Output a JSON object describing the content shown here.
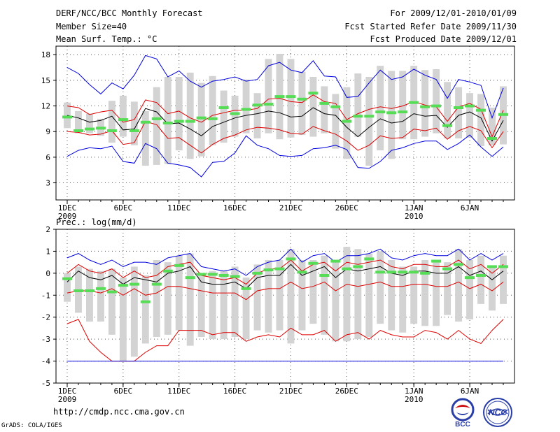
{
  "header": {
    "title": "DERF/NCC/BCC Monthly Forecast",
    "member_size": "Member Size=40",
    "variable": "Mean Surf. Temp.: °C",
    "period": "For 2009/12/01-2010/01/09",
    "fcst_started": "Fcst Started Refer Date 2009/11/30",
    "fcst_produced": "Fcst Produced Date 2009/12/01"
  },
  "footer": {
    "url": "http://cmdp.ncc.cma.gov.cn",
    "credit": "GrADS: COLA/IGES",
    "logo_bcc": "BCC",
    "logo_ncc": "NCC"
  },
  "colors": {
    "max_line": "#0000dd",
    "pct_line": "#dd0000",
    "mean_line": "#000000",
    "box": "#d3d3d3",
    "marker": "#55dd55",
    "grid": "#555555"
  },
  "chart_data": [
    {
      "type": "line",
      "title": "Mean Surf. Temp.: °C",
      "ylim": [
        1,
        19
      ],
      "yticks": [
        3,
        6,
        9,
        12,
        15,
        18
      ],
      "xtick_labels": [
        {
          "day": 1,
          "label": "1DEC",
          "sub": "2009"
        },
        {
          "day": 6,
          "label": "6DEC",
          "sub": ""
        },
        {
          "day": 11,
          "label": "11DEC",
          "sub": ""
        },
        {
          "day": 16,
          "label": "16DEC",
          "sub": ""
        },
        {
          "day": 21,
          "label": "21DEC",
          "sub": ""
        },
        {
          "day": 26,
          "label": "26DEC",
          "sub": ""
        },
        {
          "day": 32,
          "label": "1JAN",
          "sub": "2010"
        },
        {
          "day": 37,
          "label": "6JAN",
          "sub": ""
        }
      ],
      "days": [
        1,
        2,
        3,
        4,
        5,
        6,
        7,
        8,
        9,
        10,
        11,
        12,
        13,
        14,
        15,
        16,
        17,
        18,
        19,
        20,
        21,
        22,
        23,
        24,
        25,
        26,
        27,
        28,
        29,
        30,
        31,
        32,
        33,
        34,
        35,
        36,
        37,
        38,
        39,
        40
      ],
      "series": [
        {
          "name": "max",
          "values": [
            16.5,
            15.8,
            14.5,
            13.4,
            14.7,
            14.0,
            15.6,
            17.9,
            17.5,
            15.4,
            16.1,
            14.9,
            14.2,
            14.9,
            15.1,
            15.4,
            14.9,
            15.1,
            16.7,
            17.1,
            16.2,
            15.9,
            17.3,
            15.5,
            15.4,
            13.0,
            13.1,
            14.7,
            16.2,
            15.1,
            15.4,
            16.3,
            15.6,
            15.1,
            12.9,
            15.1,
            14.8,
            14.4,
            10.6,
            14.1
          ]
        },
        {
          "name": "p_high",
          "values": [
            12.0,
            11.8,
            11.0,
            11.3,
            11.5,
            10.1,
            10.4,
            12.7,
            12.4,
            11.1,
            11.4,
            10.6,
            10.1,
            10.9,
            11.2,
            11.5,
            11.5,
            11.7,
            12.8,
            12.9,
            12.5,
            12.4,
            13.3,
            12.5,
            12.3,
            10.4,
            11.1,
            11.6,
            11.9,
            11.7,
            12.0,
            12.5,
            12.1,
            11.9,
            10.2,
            11.9,
            12.3,
            11.6,
            8.4,
            11.5
          ]
        },
        {
          "name": "mean",
          "values": [
            10.9,
            10.6,
            10.1,
            10.3,
            10.8,
            9.2,
            9.3,
            11.7,
            11.3,
            9.9,
            10.0,
            9.3,
            8.5,
            9.6,
            10.1,
            10.6,
            10.9,
            11.1,
            11.4,
            11.2,
            10.7,
            10.8,
            11.8,
            11.1,
            10.9,
            9.5,
            8.4,
            9.5,
            10.5,
            10.0,
            10.2,
            11.1,
            10.8,
            10.9,
            9.5,
            10.9,
            11.3,
            10.6,
            7.9,
            10.3
          ]
        },
        {
          "name": "p_low",
          "values": [
            9.0,
            8.9,
            8.6,
            8.7,
            9.1,
            7.5,
            7.7,
            10.2,
            9.8,
            8.2,
            8.3,
            7.4,
            6.5,
            7.5,
            8.2,
            8.6,
            9.2,
            9.5,
            9.4,
            9.2,
            8.8,
            8.7,
            9.6,
            9.1,
            8.7,
            7.9,
            6.8,
            7.4,
            8.5,
            8.2,
            8.3,
            9.3,
            9.1,
            9.4,
            8.1,
            9.1,
            9.6,
            9.1,
            7.1,
            9.0
          ]
        },
        {
          "name": "min",
          "values": [
            6.1,
            6.8,
            7.1,
            7.0,
            7.3,
            5.5,
            5.3,
            7.6,
            7.0,
            5.3,
            5.1,
            4.8,
            3.7,
            5.4,
            5.5,
            6.5,
            8.5,
            7.4,
            7.0,
            6.2,
            6.1,
            6.2,
            7.0,
            7.1,
            7.4,
            6.9,
            4.8,
            4.7,
            5.5,
            6.8,
            7.1,
            7.6,
            7.9,
            7.9,
            6.9,
            7.6,
            8.6,
            7.2,
            6.1,
            7.2
          ]
        },
        {
          "name": "member_marker",
          "values": [
            10.7,
            9.1,
            9.3,
            9.4,
            9.1,
            10.4,
            9.1,
            10.1,
            10.5,
            10.0,
            10.2,
            10.2,
            10.6,
            10.5,
            11.8,
            11.1,
            11.6,
            12.1,
            12.2,
            13.1,
            13.1,
            12.8,
            13.5,
            12.3,
            11.9,
            10.2,
            10.8,
            10.8,
            11.3,
            11.2,
            11.3,
            12.4,
            11.9,
            12.0,
            9.7,
            11.8,
            12.0,
            11.5,
            8.2,
            11.0
          ]
        }
      ],
      "boxes_low": [
        9.4,
        8.8,
        8.8,
        8.5,
        7.7,
        8.4,
        7.4,
        5.0,
        5.1,
        5.2,
        6.8,
        5.8,
        6.1,
        7.4,
        7.7,
        8.4,
        8.8,
        8.2,
        8.8,
        8.1,
        8.3,
        8.6,
        8.4,
        8.8,
        7.0,
        5.8,
        8.4,
        5.0,
        6.8,
        5.8,
        8.1,
        8.1,
        8.4,
        8.8,
        8.2,
        8.2,
        8.3,
        7.3,
        7.4,
        7.5
      ],
      "boxes_high": [
        12.4,
        11.4,
        11.1,
        10.5,
        12.6,
        13.2,
        12.5,
        11.4,
        14.2,
        15.4,
        15.4,
        15.9,
        14.7,
        15.5,
        13.8,
        13.2,
        15.1,
        13.5,
        17.5,
        18.1,
        17.5,
        16.0,
        15.4,
        14.3,
        13.4,
        14.2,
        15.8,
        15.4,
        16.7,
        16.1,
        16.1,
        16.7,
        16.2,
        16.3,
        14.8,
        14.2,
        13.5,
        13.4,
        11.8,
        14.3
      ]
    },
    {
      "type": "line",
      "title": "Prec.: log(mm/d)",
      "ylim": [
        -5,
        2
      ],
      "yticks": [
        -5,
        -4,
        -3,
        -2,
        -1,
        0,
        1,
        2
      ],
      "xtick_labels": [
        {
          "day": 1,
          "label": "1DEC",
          "sub": "2009"
        },
        {
          "day": 6,
          "label": "6DEC",
          "sub": ""
        },
        {
          "day": 11,
          "label": "11DEC",
          "sub": ""
        },
        {
          "day": 16,
          "label": "16DEC",
          "sub": ""
        },
        {
          "day": 21,
          "label": "21DEC",
          "sub": ""
        },
        {
          "day": 26,
          "label": "26DEC",
          "sub": ""
        },
        {
          "day": 32,
          "label": "1JAN",
          "sub": "2010"
        },
        {
          "day": 37,
          "label": "6JAN",
          "sub": ""
        }
      ],
      "days": [
        1,
        2,
        3,
        4,
        5,
        6,
        7,
        8,
        9,
        10,
        11,
        12,
        13,
        14,
        15,
        16,
        17,
        18,
        19,
        20,
        21,
        22,
        23,
        24,
        25,
        26,
        27,
        28,
        29,
        30,
        31,
        32,
        33,
        34,
        35,
        36,
        37,
        38,
        39,
        40
      ],
      "series": [
        {
          "name": "max",
          "values": [
            0.7,
            0.9,
            0.6,
            0.4,
            0.6,
            0.3,
            0.5,
            0.5,
            0.4,
            0.7,
            0.8,
            0.9,
            0.3,
            0.2,
            0.1,
            0.2,
            -0.1,
            0.3,
            0.5,
            0.6,
            1.1,
            0.5,
            0.8,
            0.9,
            0.5,
            0.8,
            0.8,
            0.9,
            1.1,
            0.7,
            0.6,
            0.8,
            0.9,
            0.8,
            0.8,
            1.1,
            0.6,
            0.9,
            0.6,
            0.9
          ]
        },
        {
          "name": "p_high",
          "values": [
            0.0,
            0.4,
            0.1,
            0.0,
            0.2,
            -0.2,
            0.1,
            -0.2,
            -0.1,
            0.3,
            0.4,
            0.5,
            -0.1,
            -0.2,
            -0.3,
            -0.2,
            -0.5,
            0.0,
            0.2,
            0.2,
            0.6,
            0.1,
            0.4,
            0.5,
            0.1,
            0.5,
            0.4,
            0.5,
            0.6,
            0.3,
            0.2,
            0.4,
            0.4,
            0.3,
            0.3,
            0.6,
            0.2,
            0.4,
            0.0,
            0.4
          ]
        },
        {
          "name": "mean",
          "values": [
            -0.4,
            0.1,
            -0.2,
            -0.3,
            -0.1,
            -0.5,
            -0.2,
            -0.3,
            -0.4,
            0.0,
            0.1,
            0.3,
            -0.4,
            -0.5,
            -0.5,
            -0.4,
            -0.7,
            -0.2,
            -0.1,
            -0.1,
            0.4,
            -0.1,
            0.1,
            0.3,
            -0.2,
            0.2,
            0.1,
            0.2,
            0.3,
            0.0,
            -0.1,
            0.1,
            0.1,
            0.0,
            0.0,
            0.3,
            -0.1,
            0.1,
            -0.3,
            0.1
          ]
        },
        {
          "name": "p_low",
          "values": [
            -0.9,
            -0.8,
            -0.8,
            -0.9,
            -0.7,
            -1.0,
            -0.7,
            -1.0,
            -0.9,
            -0.6,
            -0.6,
            -0.7,
            -0.8,
            -0.9,
            -0.9,
            -0.9,
            -1.2,
            -0.8,
            -0.7,
            -0.7,
            -0.4,
            -0.7,
            -0.6,
            -0.4,
            -0.8,
            -0.5,
            -0.6,
            -0.5,
            -0.4,
            -0.6,
            -0.6,
            -0.5,
            -0.5,
            -0.6,
            -0.6,
            -0.4,
            -0.7,
            -0.5,
            -0.8,
            -0.4
          ]
        },
        {
          "name": "min",
          "values": [
            -2.3,
            -2.1,
            -3.1,
            -3.6,
            -4.0,
            -4.0,
            -4.0,
            -3.6,
            -3.3,
            -3.3,
            -2.6,
            -2.6,
            -2.6,
            -2.8,
            -2.7,
            -2.7,
            -3.1,
            -2.9,
            -2.8,
            -2.9,
            -2.5,
            -2.8,
            -2.8,
            -2.6,
            -3.1,
            -2.8,
            -2.7,
            -3.0,
            -2.6,
            -2.8,
            -2.9,
            -2.9,
            -2.6,
            -2.7,
            -3.0,
            -2.6,
            -3.0,
            -3.2,
            -2.6,
            -2.1
          ]
        },
        {
          "name": "min_floor",
          "values": [
            -4.0,
            -4.0,
            -4.0,
            -4.0,
            -4.0,
            -4.0,
            -4.0,
            -4.0,
            -4.0,
            -4.0,
            -4.0,
            -4.0,
            -4.0,
            -4.0,
            -4.0,
            -4.0,
            -4.0,
            -4.0,
            -4.0,
            -4.0,
            -4.0,
            -4.0,
            -4.0,
            -4.0,
            -4.0,
            -4.0,
            -4.0,
            -4.0,
            -4.0,
            -4.0,
            -4.0,
            -4.0,
            -4.0,
            -4.0,
            -4.0,
            -4.0,
            -4.0,
            -4.0,
            -4.0,
            -4.0
          ]
        },
        {
          "name": "member_marker",
          "values": [
            -0.25,
            -0.8,
            -0.8,
            -0.7,
            -0.85,
            -0.55,
            -0.5,
            -1.3,
            -0.5,
            0.1,
            0.35,
            -0.2,
            -0.05,
            -0.05,
            -0.1,
            -0.15,
            -0.7,
            0.0,
            0.15,
            0.2,
            0.65,
            0.05,
            0.45,
            -0.1,
            0.55,
            0.2,
            0.3,
            0.65,
            0.05,
            0.05,
            0.05,
            0.05,
            0.0,
            0.55,
            0.2,
            0.4,
            -0.2,
            -0.1,
            0.3,
            0.3
          ]
        }
      ],
      "boxes_low": [
        -1.3,
        -1.8,
        -2.2,
        -2.2,
        -2.8,
        -4.0,
        -3.8,
        -3.2,
        -2.9,
        -2.8,
        -2.6,
        -3.3,
        -2.9,
        -3.0,
        -3.0,
        -2.9,
        -3.0,
        -2.6,
        -2.7,
        -2.6,
        -3.2,
        -2.6,
        -2.3,
        -2.8,
        -3.1,
        -3.1,
        -3.0,
        -2.9,
        -2.3,
        -2.6,
        -2.7,
        -2.3,
        -2.4,
        -2.4,
        -1.9,
        -2.2,
        -2.1,
        -1.4,
        -1.7,
        -1.4
      ],
      "boxes_high": [
        0.0,
        0.3,
        0.2,
        0.1,
        0.2,
        -0.2,
        0.3,
        -0.1,
        0.6,
        0.5,
        0.8,
        0.9,
        0.0,
        0.1,
        0.1,
        0.3,
        -0.2,
        0.4,
        0.6,
        0.6,
        1.1,
        0.6,
        0.6,
        0.8,
        0.6,
        1.2,
        1.1,
        0.9,
        1.0,
        0.6,
        0.3,
        0.3,
        0.6,
        0.5,
        0.5,
        1.1,
        0.6,
        0.8,
        0.3,
        0.8
      ]
    }
  ]
}
